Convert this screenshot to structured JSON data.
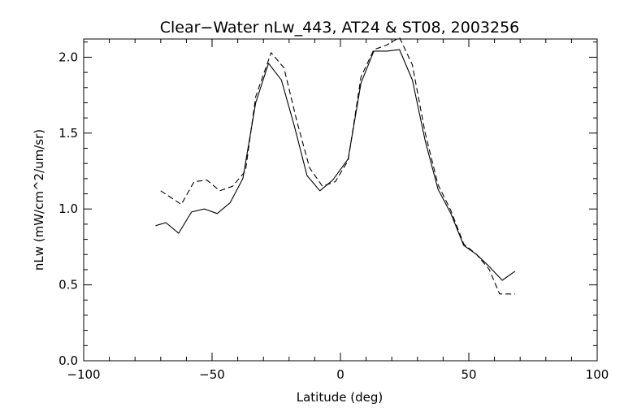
{
  "chart_data": {
    "type": "line",
    "title": "Clear−Water nLw_443, AT24 & ST08, 2003256",
    "xlabel": "Latitude (deg)",
    "ylabel": "nLw (mW/cm^2/um/sr)",
    "xlim": [
      -100,
      100
    ],
    "ylim": [
      0.0,
      2.12
    ],
    "xticks": [
      -100,
      -50,
      0,
      50,
      100
    ],
    "xtick_labels": [
      "−100",
      "−50",
      "0",
      "50",
      "100"
    ],
    "yticks": [
      0.0,
      0.5,
      1.0,
      1.5,
      2.0
    ],
    "ytick_labels": [
      "0.0",
      "0.5",
      "1.0",
      "1.5",
      "2.0"
    ],
    "x_minor_step": 10,
    "y_minor_step": 0.1,
    "grid": false,
    "legend": "none",
    "series": [
      {
        "line_style": "solid",
        "color": "#000000",
        "points": [
          [
            -72,
            0.89
          ],
          [
            -68,
            0.91
          ],
          [
            -63,
            0.84
          ],
          [
            -58,
            0.98
          ],
          [
            -53,
            1.0
          ],
          [
            -48,
            0.97
          ],
          [
            -43,
            1.04
          ],
          [
            -38,
            1.2
          ],
          [
            -33,
            1.7
          ],
          [
            -28,
            1.96
          ],
          [
            -23,
            1.85
          ],
          [
            -18,
            1.55
          ],
          [
            -13,
            1.22
          ],
          [
            -8,
            1.12
          ],
          [
            -3,
            1.19
          ],
          [
            3,
            1.33
          ],
          [
            8,
            1.83
          ],
          [
            13,
            2.04
          ],
          [
            18,
            2.04
          ],
          [
            23,
            2.05
          ],
          [
            28,
            1.85
          ],
          [
            33,
            1.45
          ],
          [
            38,
            1.13
          ],
          [
            43,
            0.97
          ],
          [
            48,
            0.76
          ],
          [
            53,
            0.7
          ],
          [
            58,
            0.62
          ],
          [
            63,
            0.53
          ],
          [
            68,
            0.59
          ]
        ]
      },
      {
        "line_style": "dashed",
        "color": "#000000",
        "points": [
          [
            -70,
            1.12
          ],
          [
            -62,
            1.03
          ],
          [
            -57,
            1.18
          ],
          [
            -52,
            1.19
          ],
          [
            -47,
            1.12
          ],
          [
            -42,
            1.15
          ],
          [
            -37,
            1.25
          ],
          [
            -33,
            1.74
          ],
          [
            -27,
            2.03
          ],
          [
            -22,
            1.93
          ],
          [
            -17,
            1.58
          ],
          [
            -12,
            1.27
          ],
          [
            -7,
            1.15
          ],
          [
            -2,
            1.18
          ],
          [
            3,
            1.32
          ],
          [
            8,
            1.87
          ],
          [
            13,
            2.05
          ],
          [
            18,
            2.08
          ],
          [
            23,
            2.13
          ],
          [
            28,
            1.95
          ],
          [
            33,
            1.5
          ],
          [
            38,
            1.16
          ],
          [
            43,
            0.99
          ],
          [
            48,
            0.77
          ],
          [
            53,
            0.7
          ],
          [
            58,
            0.6
          ],
          [
            62,
            0.44
          ],
          [
            68,
            0.44
          ]
        ]
      }
    ]
  }
}
